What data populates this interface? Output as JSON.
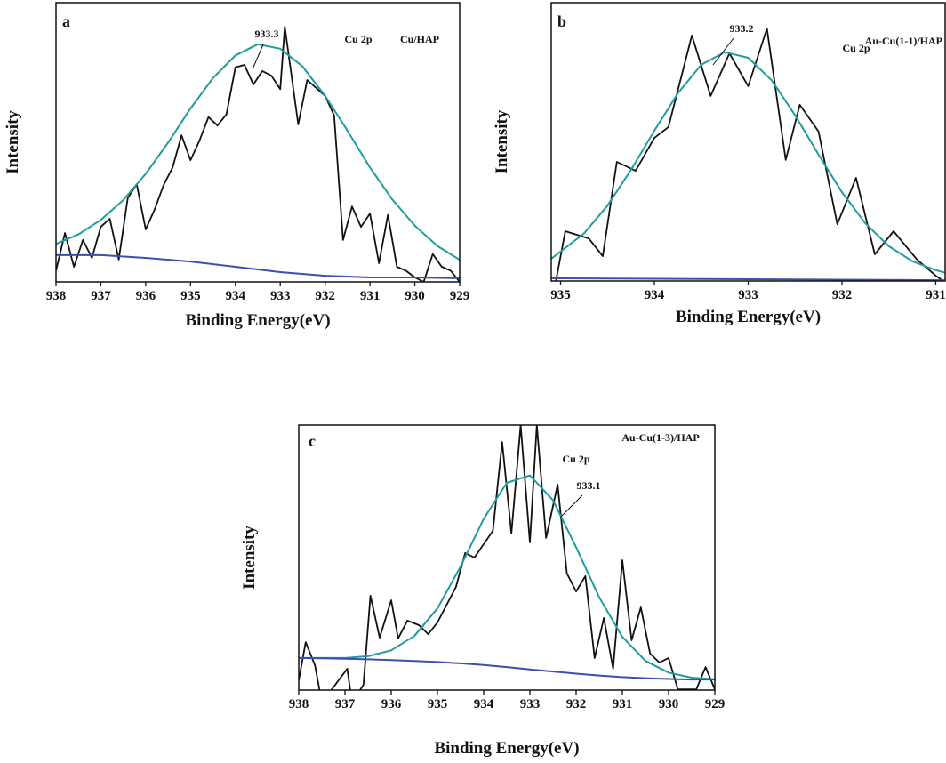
{
  "chart_data": [
    {
      "type": "line",
      "panel_label": "a",
      "peak_label": "933.3",
      "element_label": "Cu 2p",
      "sample_label": "Cu/HAP",
      "xlabel": "Binding Energy(eV)",
      "ylabel": "Intensity",
      "xlim": [
        938,
        929
      ],
      "ylim": [
        0,
        100
      ],
      "xticks": [
        938,
        937,
        936,
        935,
        934,
        933,
        932,
        931,
        930,
        929
      ],
      "series": [
        {
          "color": "#111111",
          "x": [
            938.0,
            937.8,
            937.6,
            937.4,
            937.2,
            937.0,
            936.8,
            936.6,
            936.4,
            936.2,
            936.0,
            935.8,
            935.6,
            935.4,
            935.2,
            935.0,
            934.8,
            934.6,
            934.4,
            934.2,
            934.0,
            933.8,
            933.6,
            933.4,
            933.2,
            933.0,
            932.9,
            932.6,
            932.4,
            932.0,
            931.8,
            931.6,
            931.4,
            931.2,
            931.0,
            930.8,
            930.6,
            930.4,
            930.2,
            930.0,
            929.8,
            929.6,
            929.4,
            929.2,
            929.0
          ],
          "values": [
            4,
            17.5,
            5.4,
            15,
            8.6,
            19.7,
            22.6,
            8,
            30,
            35,
            18.8,
            26,
            34.7,
            41,
            52.5,
            43.6,
            50.6,
            59,
            56,
            60,
            76.8,
            77.7,
            70.7,
            75.5,
            73.9,
            69,
            91.4,
            56.4,
            72.3,
            66.6,
            59.6,
            15,
            27,
            19.7,
            24.5,
            6.7,
            24,
            5.4,
            4,
            1.6,
            0,
            10,
            5.4,
            4,
            0
          ]
        },
        {
          "color": "#1f9c9c",
          "x": [
            938,
            937.5,
            937,
            936.5,
            936,
            935.5,
            935,
            934.5,
            934,
            933.5,
            933,
            932.5,
            932,
            931.5,
            931,
            930.5,
            930,
            929.5,
            929
          ],
          "values": [
            13.6,
            17.0,
            22.2,
            29.3,
            38.7,
            49.9,
            62.1,
            73.0,
            81.1,
            85.1,
            83.5,
            77.1,
            66.6,
            54.1,
            41.0,
            29.5,
            20.1,
            12.9,
            7.9
          ]
        },
        {
          "color": "#3b4fb0",
          "x": [
            938,
            937,
            936,
            935,
            934,
            933,
            932,
            931,
            930,
            929
          ],
          "values": [
            9.6,
            9.6,
            8.6,
            7.3,
            5.4,
            3.5,
            2.2,
            1.6,
            1.6,
            1.3
          ]
        }
      ]
    },
    {
      "type": "line",
      "panel_label": "b",
      "peak_label": "933.2",
      "element_label": "Cu 2p",
      "sample_label": "Au-Cu(1-1)/HAP",
      "xlabel": "Binding Energy(eV)",
      "ylabel": "Intensity",
      "xlim": [
        935.1,
        930.9
      ],
      "ylim": [
        0,
        100
      ],
      "xticks": [
        935,
        934,
        933,
        932,
        931
      ],
      "series": [
        {
          "color": "#111111",
          "x": [
            935.05,
            934.95,
            934.7,
            934.55,
            934.4,
            934.2,
            934.0,
            933.85,
            933.6,
            933.4,
            933.2,
            933.0,
            932.8,
            932.6,
            932.45,
            932.25,
            932.05,
            931.85,
            931.65,
            931.45,
            931.2,
            931.0,
            930.92
          ],
          "values": [
            0,
            17.9,
            15.3,
            8.9,
            42.8,
            39.6,
            51.4,
            55.3,
            88.2,
            66.5,
            81.8,
            70.0,
            90.7,
            43.5,
            63.3,
            53.7,
            20.4,
            37.1,
            9.6,
            17.9,
            7.7,
            1.9,
            0
          ]
        },
        {
          "color": "#1f9c9c",
          "x": [
            935.1,
            934.75,
            934.5,
            934.25,
            934.0,
            933.75,
            933.5,
            933.25,
            933.0,
            932.75,
            932.5,
            932.25,
            932.0,
            931.75,
            931.5,
            931.25,
            931.0,
            930.9
          ],
          "values": [
            8.0,
            17.1,
            27.1,
            39.9,
            54.0,
            67.4,
            77.7,
            82.2,
            80.2,
            72.1,
            59.6,
            45.4,
            31.9,
            20.7,
            12.5,
            7.1,
            3.9,
            3.0
          ]
        },
        {
          "color": "#3b4fb0",
          "x": [
            935.1,
            930.9
          ],
          "values": [
            1.0,
            0.3
          ]
        }
      ]
    },
    {
      "type": "line",
      "panel_label": "c",
      "peak_label": "933.1",
      "element_label": "Cu 2p",
      "sample_label": "Au-Cu(1-3)/HAP",
      "xlabel": "Binding Energy(eV)",
      "ylabel": "Intensity",
      "xlim": [
        938,
        929
      ],
      "ylim": [
        0,
        100
      ],
      "xticks": [
        938,
        937,
        936,
        935,
        934,
        933,
        932,
        931,
        930,
        929
      ],
      "series": [
        {
          "color": "#111111",
          "x": [
            938.0,
            937.85,
            937.65,
            937.5,
            936.95,
            936.85,
            936.6,
            936.45,
            936.25,
            936.0,
            935.85,
            935.65,
            935.4,
            935.2,
            935.0,
            934.6,
            934.4,
            934.2,
            933.8,
            933.6,
            933.4,
            933.2,
            933.0,
            932.85,
            932.65,
            932.4,
            932.2,
            932.0,
            931.8,
            931.6,
            931.4,
            931.2,
            931.0,
            930.8,
            930.6,
            930.4,
            930.2,
            930.0,
            929.8,
            929.4,
            929.2,
            929.0
          ],
          "values": [
            3.7,
            18.1,
            9.4,
            -4.7,
            8.1,
            -4.7,
            2,
            35.6,
            19.8,
            33.9,
            19.5,
            26.2,
            24.5,
            21.1,
            25.5,
            38.9,
            51.7,
            50,
            60.1,
            93.6,
            59.1,
            100,
            55.7,
            100,
            57.4,
            77.5,
            44,
            37.2,
            43,
            12.1,
            27.2,
            8.1,
            49,
            18.8,
            31.2,
            13.8,
            10.4,
            12.1,
            0.3,
            0.3,
            8.7,
            0.3
          ]
        },
        {
          "color": "#1f9c9c",
          "x": [
            938,
            937.5,
            937,
            936.5,
            936,
            935.5,
            935,
            934.5,
            934,
            933.5,
            933,
            932.5,
            932,
            931.5,
            931,
            930.5,
            930,
            929.5,
            929
          ],
          "values": [
            12.1,
            12.1,
            12.1,
            12.8,
            15.0,
            20.4,
            30.8,
            46.6,
            64.6,
            78.2,
            81.0,
            71.6,
            53.9,
            35.0,
            20.1,
            11.0,
            6.6,
            4.7,
            4.1
          ]
        },
        {
          "color": "#3b4fb0",
          "x": [
            938,
            937.5,
            937,
            936.5,
            936,
            935.5,
            935,
            934.5,
            934,
            933.5,
            933,
            932.5,
            932,
            931.5,
            931,
            930.5,
            930,
            929.5,
            929
          ],
          "values": [
            12.1,
            12.0,
            11.8,
            11.6,
            11.3,
            11.0,
            10.6,
            10.1,
            9.5,
            8.7,
            7.8,
            7.0,
            6.2,
            5.5,
            4.9,
            4.5,
            4.2,
            4.0,
            4.0
          ]
        }
      ]
    }
  ]
}
